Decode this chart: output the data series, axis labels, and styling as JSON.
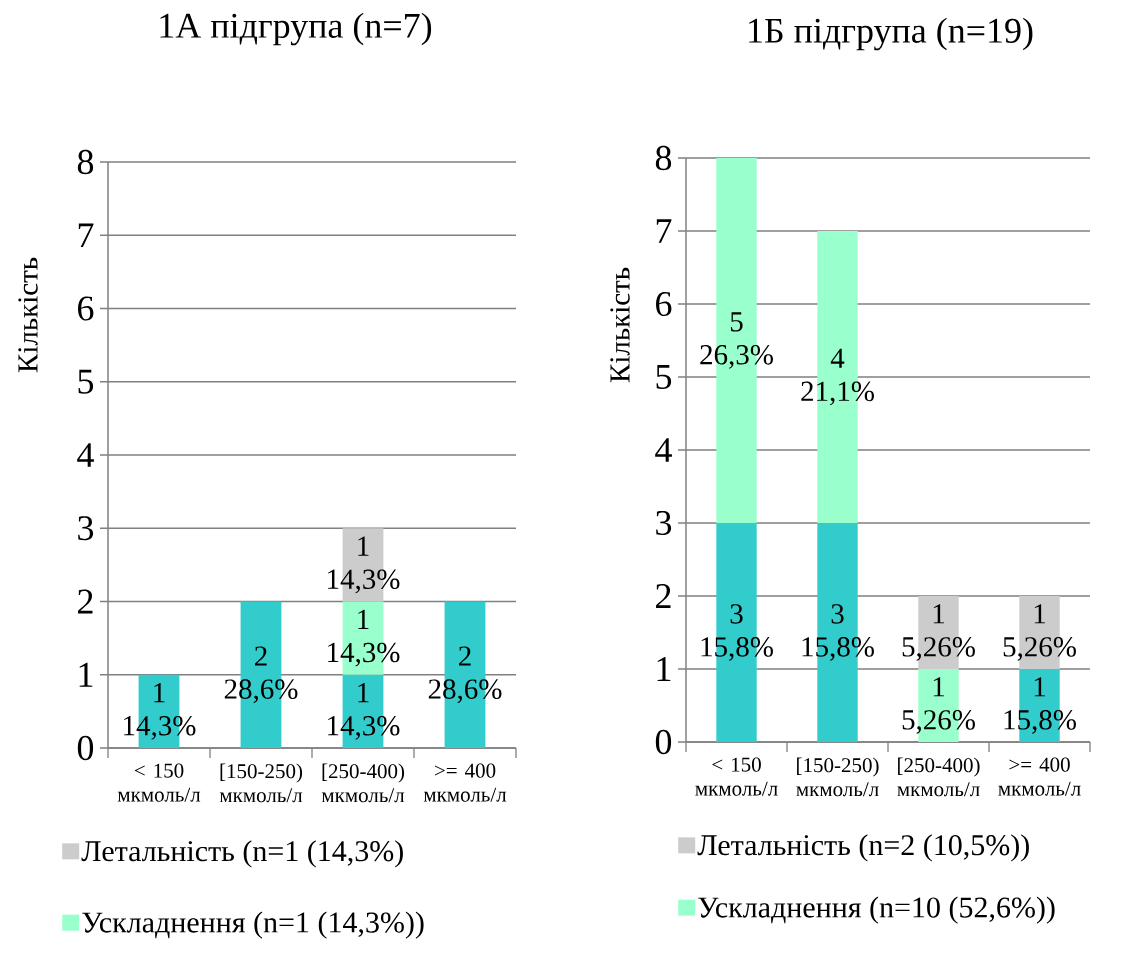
{
  "chart_data": [
    {
      "type": "bar",
      "stacked": true,
      "title": "1А підгрупа (n=7)",
      "ylabel": "Кількість",
      "categories": [
        "< 150 мкмоль/л",
        "[150-250) мкмоль/л",
        "[250-400) мкмоль/л",
        ">= 400 мкмоль/л"
      ],
      "series": [
        {
          "color": "#33cccc",
          "values": [
            1,
            2,
            1,
            2
          ],
          "value_labels": [
            "1 14,3%",
            "2 28,6%",
            "1 14,3%",
            "2 28,6%"
          ]
        },
        {
          "name": "Ускладнення (n=1 (14,3%))",
          "color": "#99ffcc",
          "values": [
            null,
            null,
            1,
            null
          ],
          "value_labels": [
            null,
            null,
            "1 14,3%",
            null
          ]
        },
        {
          "name": "Летальність (n=1 (14,3%)",
          "color": "#cccccc",
          "values": [
            null,
            null,
            1,
            null
          ],
          "value_labels": [
            null,
            null,
            "1 14,3%",
            null
          ]
        }
      ],
      "ylim": [
        0,
        8
      ],
      "yticks": [
        0,
        1,
        2,
        3,
        4,
        5,
        6,
        7,
        8
      ],
      "grid": "y",
      "legend": "bottom"
    },
    {
      "type": "bar",
      "stacked": true,
      "title": "1Б підгрупа (n=19)",
      "ylabel": "Кількість",
      "categories": [
        "< 150 мкмоль/л",
        "[150-250) мкмоль/л",
        "[250-400) мкмоль/л",
        ">= 400 мкмоль/л"
      ],
      "series": [
        {
          "color": "#33cccc",
          "values": [
            3,
            3,
            null,
            1
          ],
          "value_labels": [
            "3 15,8%",
            "3 15,8%",
            null,
            "1 15,8%"
          ]
        },
        {
          "name": "Ускладнення (n=10 (52,6%))",
          "color": "#99ffcc",
          "values": [
            5,
            4,
            1,
            null
          ],
          "value_labels": [
            "5 26,3%",
            "4 21,1%",
            "1 5,26%",
            null
          ]
        },
        {
          "name": "Летальність (n=2 (10,5%))",
          "color": "#cccccc",
          "values": [
            null,
            null,
            1,
            1
          ],
          "value_labels": [
            null,
            null,
            "1 5,26%",
            "1 5,26%"
          ]
        }
      ],
      "ylim": [
        0,
        8
      ],
      "yticks": [
        0,
        1,
        2,
        3,
        4,
        5,
        6,
        7,
        8
      ],
      "grid": "y",
      "legend": "bottom"
    }
  ]
}
